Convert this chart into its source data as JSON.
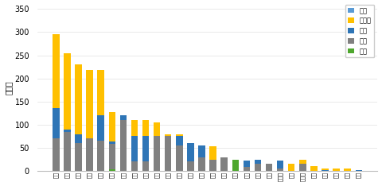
{
  "provinces": [
    "江蘇",
    "浙江",
    "山東",
    "河南",
    "河北",
    "山西",
    "江西",
    "安徽",
    "新疆",
    "寧夏",
    "吉林",
    "遼寧",
    "福建",
    "湖北",
    "湖南",
    "廣東",
    "三峽",
    "四川",
    "甘肅",
    "陜西",
    "黑龍江",
    "廣西",
    "內蒙古",
    "北京",
    "云南",
    "上海",
    "貴州",
    "西藏"
  ],
  "water": [
    0,
    0,
    0,
    0,
    0,
    3,
    0,
    0,
    0,
    0,
    0,
    0,
    0,
    0,
    0,
    0,
    25,
    0,
    0,
    0,
    0,
    0,
    0,
    0,
    0,
    0,
    0,
    0
  ],
  "fire": [
    70,
    85,
    60,
    70,
    65,
    55,
    110,
    20,
    20,
    75,
    75,
    55,
    20,
    30,
    25,
    30,
    0,
    8,
    15,
    15,
    5,
    0,
    15,
    0,
    0,
    0,
    0,
    0
  ],
  "wind": [
    65,
    5,
    20,
    0,
    55,
    5,
    10,
    55,
    55,
    0,
    0,
    20,
    40,
    25,
    0,
    0,
    0,
    15,
    10,
    0,
    18,
    0,
    0,
    0,
    2,
    0,
    0,
    1
  ],
  "solar": [
    160,
    165,
    150,
    148,
    98,
    65,
    0,
    35,
    35,
    30,
    5,
    5,
    0,
    0,
    28,
    0,
    0,
    0,
    0,
    0,
    0,
    15,
    10,
    10,
    3,
    5,
    5,
    0
  ],
  "other": [
    0,
    0,
    0,
    0,
    0,
    0,
    0,
    0,
    0,
    0,
    0,
    0,
    0,
    0,
    0,
    0,
    0,
    0,
    0,
    0,
    0,
    0,
    0,
    0,
    0,
    0,
    0,
    0
  ],
  "color_water": "#4ea72e",
  "color_fire": "#808080",
  "color_wind": "#2e75b6",
  "color_solar": "#ffc000",
  "color_other": "#5b9bd5",
  "ylabel": "萬千瓦",
  "ylim": [
    0,
    360
  ],
  "yticks": [
    0,
    50,
    100,
    150,
    200,
    250,
    300,
    350
  ],
  "legend_labels": [
    "其它",
    "太陽能",
    "風電",
    "火電",
    "水電"
  ],
  "bar_width": 0.6,
  "fig_width": 4.8,
  "fig_height": 2.34,
  "dpi": 100
}
